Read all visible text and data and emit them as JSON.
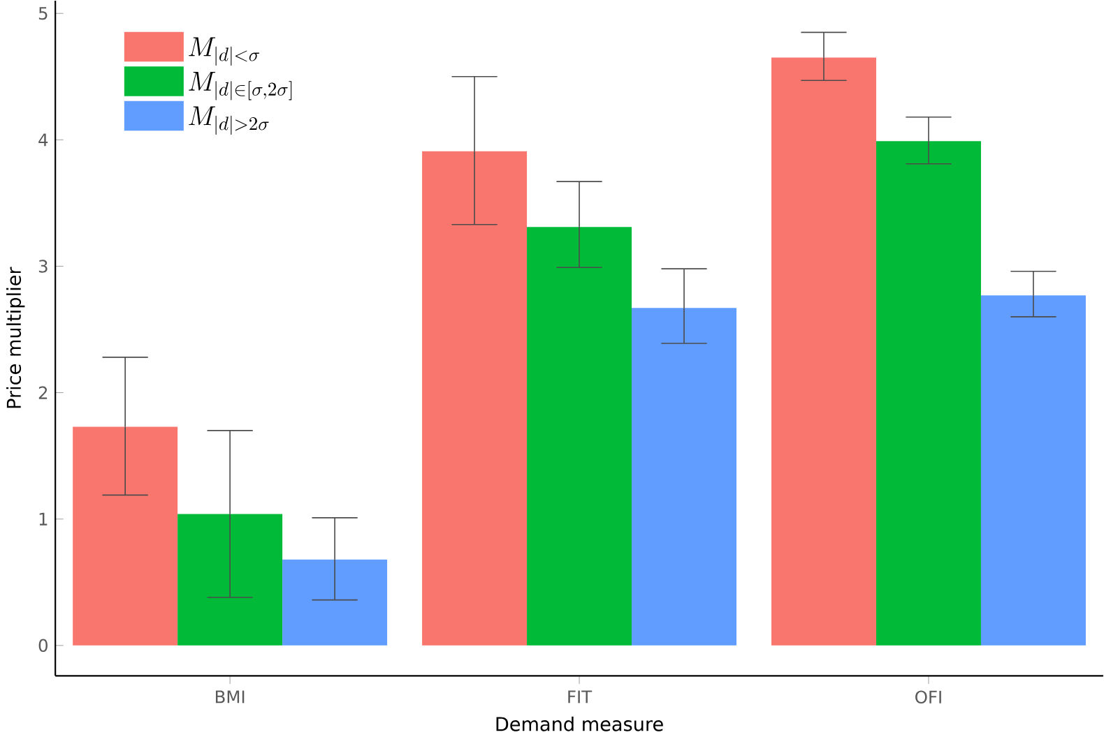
{
  "chart_data": {
    "type": "bar",
    "xlabel": "Demand measure",
    "ylabel": "Price multiplier",
    "categories": [
      "BMI",
      "FIT",
      "OFI"
    ],
    "series": [
      {
        "name": "M_{|d|<\\sigma}",
        "color": "#f8766d",
        "values": [
          1.73,
          3.91,
          4.65
        ],
        "errors": [
          [
            1.19,
            2.28
          ],
          [
            3.33,
            4.5
          ],
          [
            4.47,
            4.85
          ]
        ]
      },
      {
        "name": "M_{|d|\\in [\\sigma, 2\\sigma]}",
        "color": "#00ba38",
        "values": [
          1.04,
          3.31,
          3.99
        ],
        "errors": [
          [
            0.38,
            1.7
          ],
          [
            2.99,
            3.67
          ],
          [
            3.81,
            4.18
          ]
        ]
      },
      {
        "name": "M_{|d|>2\\sigma}",
        "color": "#619cff",
        "values": [
          0.68,
          2.67,
          2.77
        ],
        "errors": [
          [
            0.36,
            1.01
          ],
          [
            2.39,
            2.98
          ],
          [
            2.6,
            2.96
          ]
        ]
      }
    ],
    "ylim": [
      -0.24,
      5.1
    ],
    "yticks": [
      0,
      1,
      2,
      3,
      4,
      5
    ],
    "grid": false,
    "legend": "top left"
  }
}
